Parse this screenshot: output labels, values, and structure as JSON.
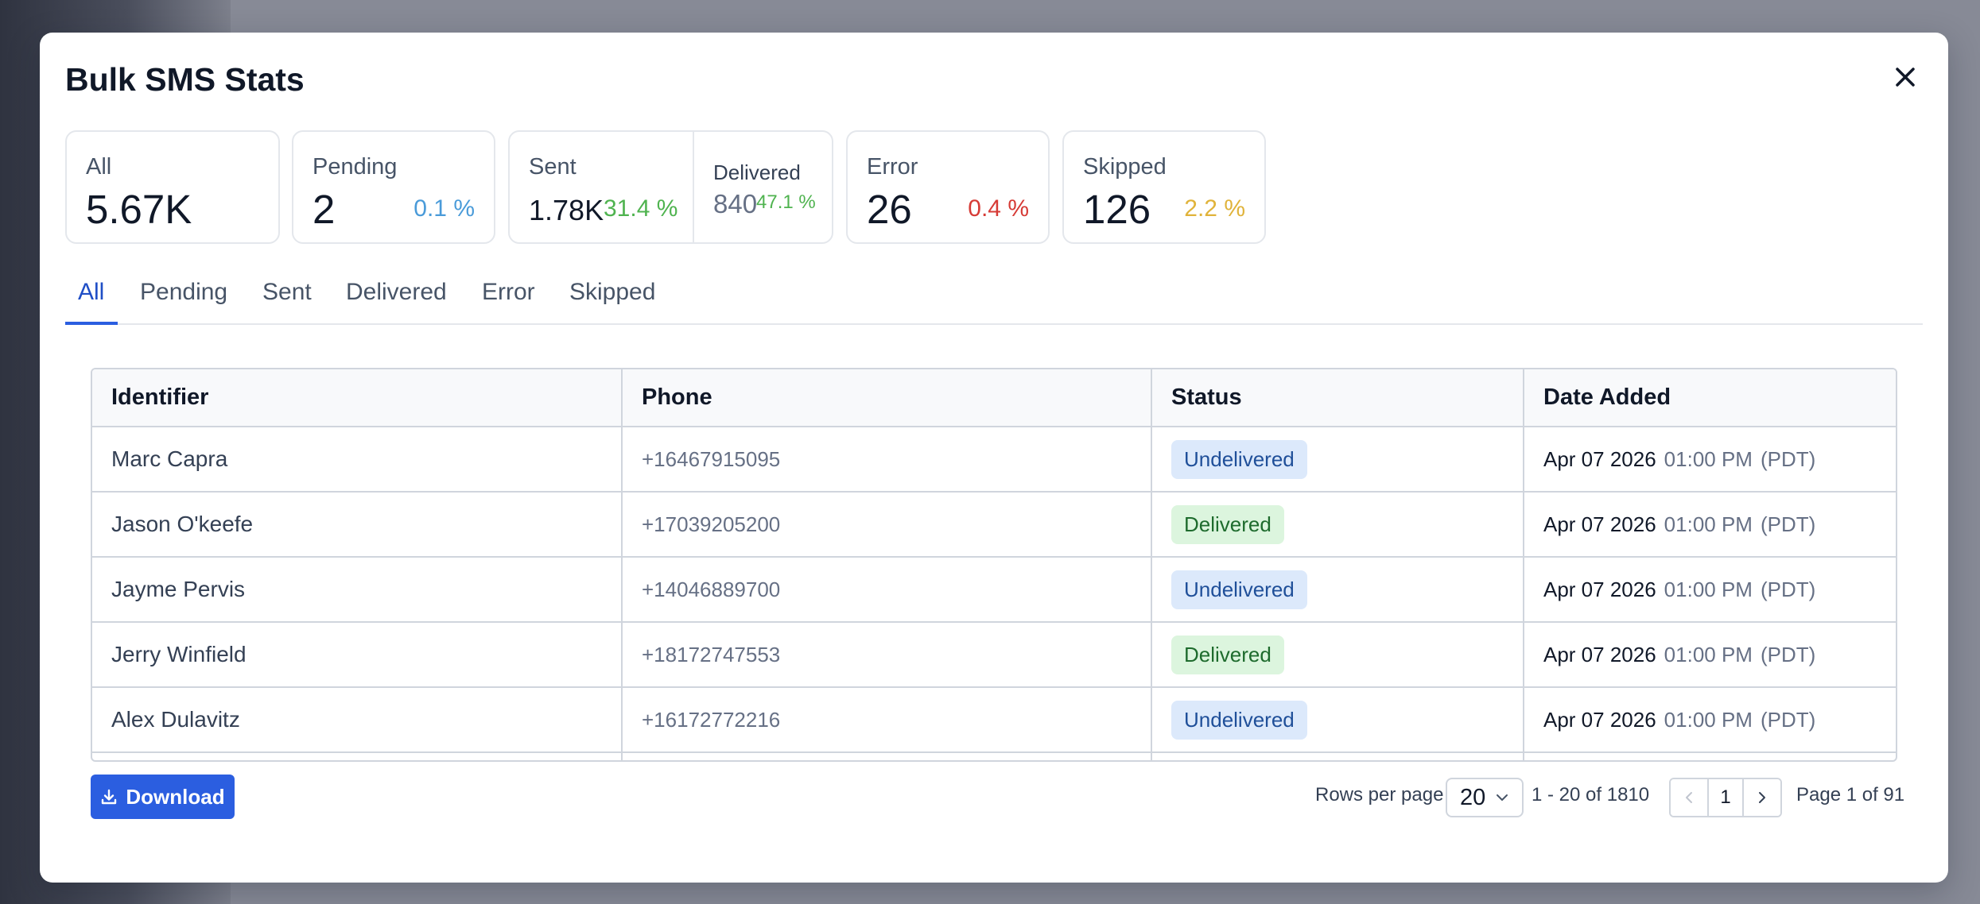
{
  "modal": {
    "title": "Bulk SMS Stats"
  },
  "stats": {
    "all": {
      "label": "All",
      "value": "5.67K"
    },
    "pending": {
      "label": "Pending",
      "value": "2",
      "pct": "0.1 %"
    },
    "sent": {
      "label": "Sent",
      "value": "1.78K",
      "pct": "31.4 %"
    },
    "delivered": {
      "label": "Delivered",
      "value": "840",
      "pct": "47.1 %"
    },
    "error": {
      "label": "Error",
      "value": "26",
      "pct": "0.4 %"
    },
    "skipped": {
      "label": "Skipped",
      "value": "126",
      "pct": "2.2 %"
    }
  },
  "colors": {
    "pending_pct": "#4a9bd9",
    "sent_pct": "#4fb34f",
    "error_pct": "#d63b36",
    "skipped_pct": "#e0b33a",
    "accent": "#2b5ee0",
    "undelivered_bg": "#dce9fb",
    "undelivered_text": "#1f4f99",
    "delivered_bg": "#dcf5de",
    "delivered_text": "#1e6b2d"
  },
  "tabs": [
    {
      "label": "All"
    },
    {
      "label": "Pending"
    },
    {
      "label": "Sent"
    },
    {
      "label": "Delivered"
    },
    {
      "label": "Error"
    },
    {
      "label": "Skipped"
    }
  ],
  "table": {
    "headers": [
      "Identifier",
      "Phone",
      "Status",
      "Date Added"
    ],
    "rows": [
      {
        "identifier": "Marc Capra",
        "phone": "+16467915095",
        "status": "Undelivered",
        "date": "Apr 07 2026",
        "time": "01:00 PM",
        "tz": "(PDT)"
      },
      {
        "identifier": "Jason O'keefe",
        "phone": "+17039205200",
        "status": "Delivered",
        "date": "Apr 07 2026",
        "time": "01:00 PM",
        "tz": "(PDT)"
      },
      {
        "identifier": "Jayme Pervis",
        "phone": "+14046889700",
        "status": "Undelivered",
        "date": "Apr 07 2026",
        "time": "01:00 PM",
        "tz": "(PDT)"
      },
      {
        "identifier": "Jerry Winfield",
        "phone": "+18172747553",
        "status": "Delivered",
        "date": "Apr 07 2026",
        "time": "01:00 PM",
        "tz": "(PDT)"
      },
      {
        "identifier": "Alex Dulavitz",
        "phone": "+16172772216",
        "status": "Undelivered",
        "date": "Apr 07 2026",
        "time": "01:00 PM",
        "tz": "(PDT)"
      }
    ]
  },
  "footer": {
    "download_label": "Download",
    "rows_per_page_label": "Rows per page",
    "rows_per_page_value": "20",
    "range_text": "1 - 20 of 1810",
    "current_page": "1",
    "page_of_text": "Page 1 of 91"
  },
  "icons": {
    "close": "close-icon",
    "download": "download-icon",
    "chevron_down": "chevron-down-icon",
    "prev": "chevron-left-icon",
    "next": "chevron-right-icon"
  }
}
